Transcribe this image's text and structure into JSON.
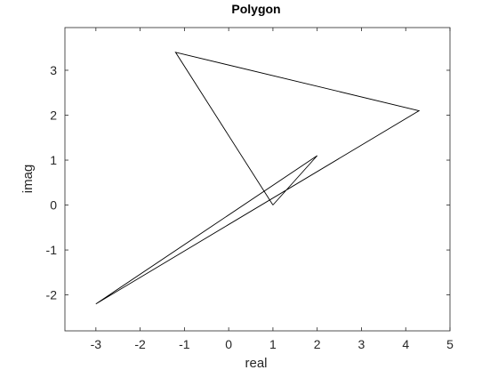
{
  "chart_data": {
    "type": "line",
    "title": "Polygon",
    "xlabel": "real",
    "ylabel": "imag",
    "xlim": [
      -3.7,
      5.0
    ],
    "ylim": [
      -2.8,
      3.95
    ],
    "xticks": [
      -3,
      -2,
      -1,
      0,
      1,
      2,
      3,
      4,
      5
    ],
    "yticks": [
      -2,
      -1,
      0,
      1,
      2,
      3
    ],
    "xtick_labels": [
      "-3",
      "-2",
      "-1",
      "0",
      "1",
      "2",
      "3",
      "4",
      "5"
    ],
    "ytick_labels": [
      "-2",
      "-1",
      "0",
      "1",
      "2",
      "3"
    ],
    "grid": false,
    "series": [
      {
        "color": "#000000",
        "x": [
          1.0,
          2.0,
          -3.0,
          4.3,
          -1.2,
          1.0
        ],
        "y": [
          0.0,
          1.1,
          -2.2,
          2.1,
          3.4,
          0.0
        ]
      }
    ]
  },
  "colors": {
    "axes_frame": "#262626",
    "line": "#000000",
    "background": "#ffffff"
  }
}
